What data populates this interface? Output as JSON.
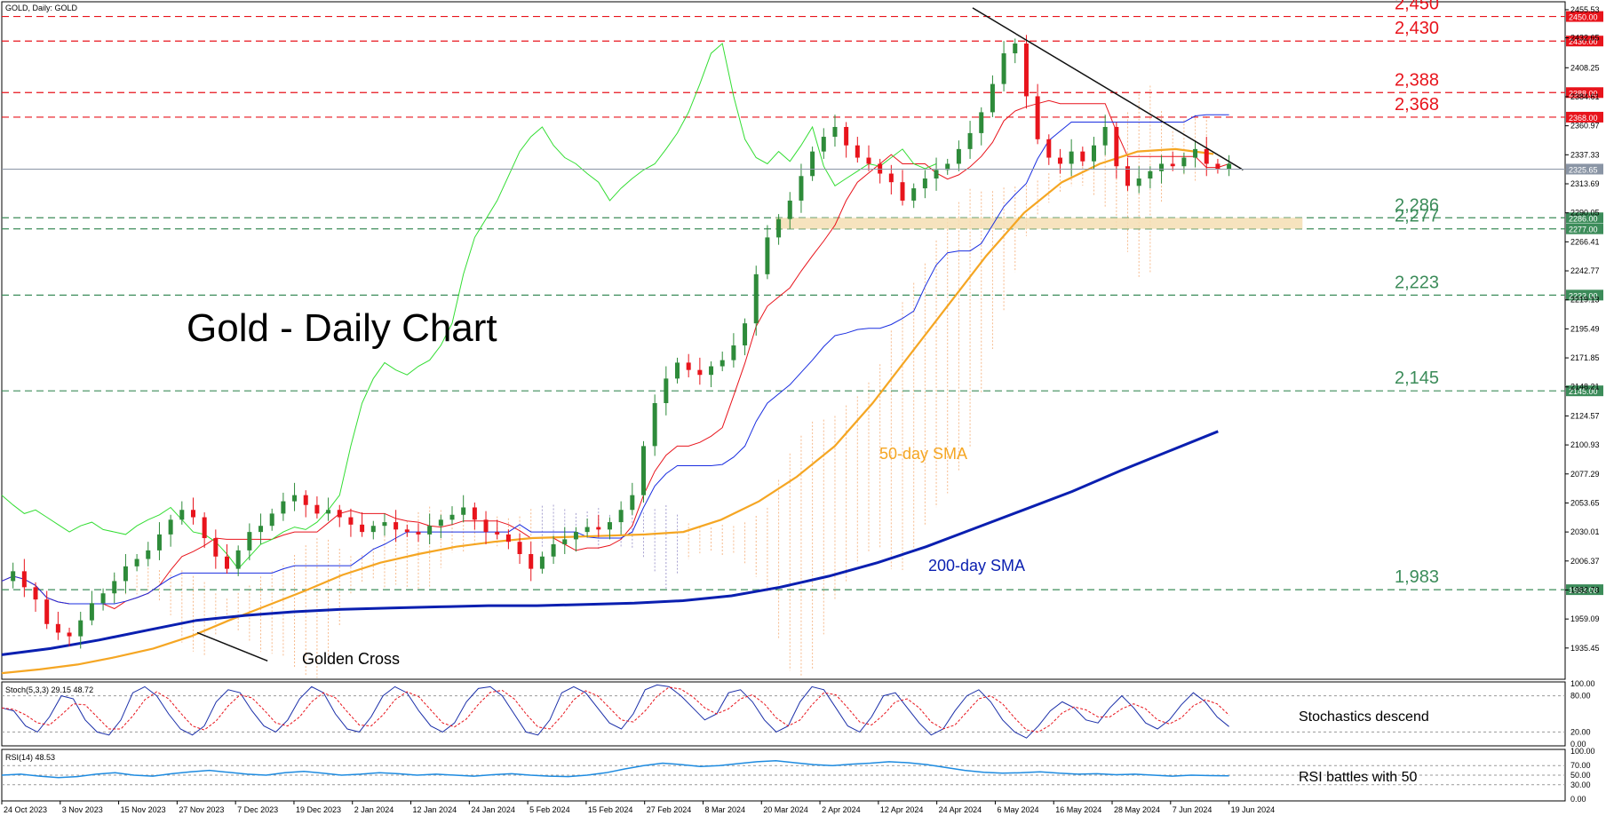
{
  "header": {
    "symbol_label": "GOLD, Daily:  GOLD"
  },
  "chart_data": {
    "type": "candlestick",
    "title": "Gold - Daily Chart",
    "y_axis": {
      "ylim": [
        1910,
        2462
      ],
      "tick_labels": [
        "2455.53",
        "2432.65",
        "2408.25",
        "2384.61",
        "2360.97",
        "2337.33",
        "2313.69",
        "2290.05",
        "2266.41",
        "2242.77",
        "2219.13",
        "2195.49",
        "2171.85",
        "2148.21",
        "2124.57",
        "2100.93",
        "2077.29",
        "2053.65",
        "2030.01",
        "2006.37",
        "1982.73",
        "1959.09",
        "1935.45"
      ],
      "tick_values": [
        2455.53,
        2432.65,
        2408.25,
        2384.61,
        2360.97,
        2337.33,
        2313.69,
        2290.05,
        2266.41,
        2242.77,
        2219.13,
        2195.49,
        2171.85,
        2148.21,
        2124.57,
        2100.93,
        2077.29,
        2053.65,
        2030.01,
        2006.37,
        1982.73,
        1959.09,
        1935.45
      ],
      "price_tag": {
        "value": 2325.65,
        "label": "2325.65",
        "color": "#8a95a5"
      }
    },
    "x_axis": {
      "tick_labels": [
        "24 Oct 2023",
        "3 Nov 2023",
        "15 Nov 2023",
        "27 Nov 2023",
        "7 Dec 2023",
        "19 Dec 2023",
        "2 Jan 2024",
        "12 Jan 2024",
        "24 Jan 2024",
        "5 Feb 2024",
        "15 Feb 2024",
        "27 Feb 2024",
        "8 Mar 2024",
        "20 Mar 2024",
        "2 Apr 2024",
        "12 Apr 2024",
        "24 Apr 2024",
        "6 May 2024",
        "16 May 2024",
        "28 May 2024",
        "7 Jun 2024",
        "19 Jun 2024"
      ]
    },
    "levels": [
      {
        "value": 2450,
        "label": "2,450",
        "tag": "2450.00",
        "color": "#e8141c",
        "style": "dashed"
      },
      {
        "value": 2430,
        "label": "2,430",
        "tag": "2430.00",
        "color": "#e8141c",
        "style": "dashed"
      },
      {
        "value": 2388,
        "label": "2,388",
        "tag": "2388.00",
        "color": "#e8141c",
        "style": "dashed"
      },
      {
        "value": 2368,
        "label": "2,368",
        "tag": "2368.00",
        "color": "#e8141c",
        "style": "dashed"
      },
      {
        "value": 2286,
        "label": "2,286",
        "tag": "2286.00",
        "color": "#3c8c5a",
        "style": "dashed"
      },
      {
        "value": 2277,
        "label": "2,277",
        "tag": "2277.00",
        "color": "#3c8c5a",
        "style": "dashed"
      },
      {
        "value": 2223,
        "label": "2,223",
        "tag": "2223.00",
        "color": "#3c8c5a",
        "style": "dashed"
      },
      {
        "value": 2145,
        "label": "2,145",
        "tag": "2145.00",
        "color": "#3c8c5a",
        "style": "dashed"
      },
      {
        "value": 1983,
        "label": "1,983",
        "tag": "1983.00",
        "color": "#3c8c5a",
        "style": "dashed"
      }
    ],
    "support_zone": {
      "from": 2277,
      "to": 2286,
      "x_from": 0.495,
      "x_to": 0.832,
      "color": "#f5deb3"
    },
    "close_series": [
      1990,
      1998,
      1985,
      1975,
      1955,
      1948,
      1945,
      1958,
      1972,
      1980,
      1990,
      2002,
      2008,
      2015,
      2028,
      2040,
      2048,
      2042,
      2025,
      2010,
      2000,
      2015,
      2030,
      2035,
      2045,
      2055,
      2060,
      2052,
      2045,
      2048,
      2042,
      2036,
      2030,
      2035,
      2038,
      2032,
      2030,
      2028,
      2035,
      2040,
      2044,
      2050,
      2040,
      2030,
      2028,
      2022,
      2012,
      2000,
      2010,
      2020,
      2024,
      2030,
      2034,
      2032,
      2038,
      2048,
      2060,
      2100,
      2135,
      2155,
      2168,
      2162,
      2158,
      2165,
      2170,
      2182,
      2200,
      2240,
      2270,
      2285,
      2300,
      2320,
      2340,
      2352,
      2360,
      2345,
      2335,
      2330,
      2322,
      2315,
      2300,
      2310,
      2318,
      2325,
      2330,
      2342,
      2355,
      2372,
      2395,
      2420,
      2428,
      2385,
      2350,
      2335,
      2330,
      2340,
      2332,
      2345,
      2360,
      2328,
      2312,
      2318,
      2324,
      2330,
      2328,
      2335,
      2342,
      2330,
      2326,
      2330
    ],
    "candles_visible": 110,
    "sma50": {
      "name": "50-day SMA",
      "color": "#f5a623",
      "values": [
        1915,
        1918,
        1922,
        1928,
        1935,
        1945,
        1958,
        1970,
        1982,
        1995,
        2005,
        2012,
        2018,
        2022,
        2025,
        2026,
        2027,
        2028,
        2030,
        2040,
        2055,
        2075,
        2100,
        2135,
        2175,
        2215,
        2255,
        2290,
        2315,
        2330,
        2340,
        2342,
        2338
      ]
    },
    "sma200": {
      "name": "200-day SMA",
      "color": "#0a1fb0",
      "values": [
        1930,
        1935,
        1942,
        1950,
        1958,
        1962,
        1965,
        1967,
        1968,
        1969,
        1970,
        1970,
        1971,
        1972,
        1974,
        1978,
        1985,
        1994,
        2005,
        2018,
        2033,
        2048,
        2063,
        2080,
        2096,
        2112
      ]
    },
    "trendlines": [
      {
        "from": [
          0.621,
          2457
        ],
        "to": [
          0.794,
          2325
        ],
        "color": "#111111"
      },
      {
        "from": [
          0.125,
          1948
        ],
        "to": [
          0.17,
          1925
        ],
        "color": "#111111"
      }
    ],
    "annotations": [
      {
        "text": "Gold - Daily Chart",
        "value": 2283,
        "at": 0.117
      },
      {
        "text": "50-day SMA",
        "value": 2102,
        "at": 0.548,
        "color": "#f5a623"
      },
      {
        "text": "200-day SMA",
        "value": 2012,
        "at": 0.578,
        "color": "#0a1fb0"
      },
      {
        "text": "Golden Cross",
        "value": 1930,
        "at": 0.188
      }
    ],
    "colors": {
      "bull": "#2e8b3a",
      "bear": "#e8141c",
      "tenkan": "#e8141c",
      "kijun": "#1a2ee0",
      "chikou": "#33dd33",
      "cloud": "#f4a468",
      "cloud_dark": "#8a82c0"
    }
  },
  "stochastic": {
    "label": "Stoch(5,3,3) 29.15 48.72",
    "ticks": [
      "100.00",
      "80.00",
      "20.00",
      "0.00"
    ],
    "annotation": "Stochastics descend",
    "k_color": "#1a2ea8",
    "d_color": "#e8141c",
    "k_values": [
      60,
      55,
      30,
      20,
      45,
      80,
      75,
      40,
      20,
      15,
      40,
      85,
      95,
      80,
      50,
      25,
      15,
      30,
      70,
      90,
      85,
      55,
      30,
      20,
      40,
      75,
      95,
      85,
      50,
      25,
      20,
      45,
      80,
      95,
      85,
      55,
      30,
      20,
      35,
      70,
      92,
      95,
      80,
      50,
      20,
      15,
      40,
      85,
      95,
      85,
      60,
      35,
      25,
      50,
      90,
      98,
      95,
      80,
      60,
      40,
      50,
      85,
      90,
      70,
      40,
      20,
      30,
      70,
      95,
      90,
      60,
      30,
      20,
      45,
      80,
      85,
      60,
      35,
      15,
      25,
      55,
      80,
      90,
      70,
      40,
      20,
      10,
      30,
      55,
      70,
      60,
      40,
      35,
      60,
      80,
      60,
      35,
      25,
      40,
      65,
      85,
      70,
      45,
      29
    ]
  },
  "rsi": {
    "label": "RSI(14) 48.53",
    "ticks": [
      "100.00",
      "70.00",
      "50.00",
      "30.00",
      "0.00"
    ],
    "annotation": "RSI battles with 50",
    "color": "#1e8be0",
    "values": [
      50,
      52,
      48,
      45,
      47,
      52,
      55,
      50,
      48,
      53,
      57,
      60,
      56,
      52,
      50,
      55,
      58,
      54,
      50,
      52,
      55,
      53,
      50,
      52,
      50,
      48,
      51,
      53,
      50,
      48,
      47,
      50,
      55,
      63,
      70,
      75,
      72,
      68,
      70,
      74,
      78,
      80,
      76,
      72,
      70,
      73,
      75,
      78,
      76,
      72,
      66,
      60,
      56,
      54,
      55,
      57,
      54,
      52,
      53,
      51,
      52,
      50,
      48,
      50,
      49,
      48.53
    ]
  }
}
